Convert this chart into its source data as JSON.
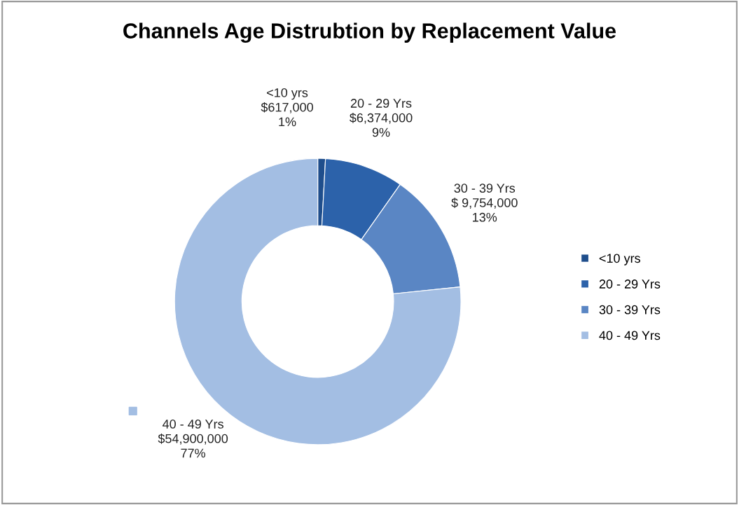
{
  "chart_data": {
    "type": "donut",
    "title": "Channels Age Distrubtion by Replacement Value",
    "categories": [
      "<10 yrs",
      "20 - 29 Yrs",
      "30 - 39 Yrs",
      "40 - 49 Yrs"
    ],
    "values": [
      617000,
      6374000,
      9754000,
      54900000
    ],
    "colors": [
      "#1f4e8c",
      "#2c62aa",
      "#5a86c4",
      "#a3bee3"
    ],
    "value_labels": [
      "$617,000\n1%",
      "$6,374,000\n9%",
      "$ 9,754,000\n13%",
      "$54,900,000\n77%"
    ],
    "legend": "right"
  }
}
